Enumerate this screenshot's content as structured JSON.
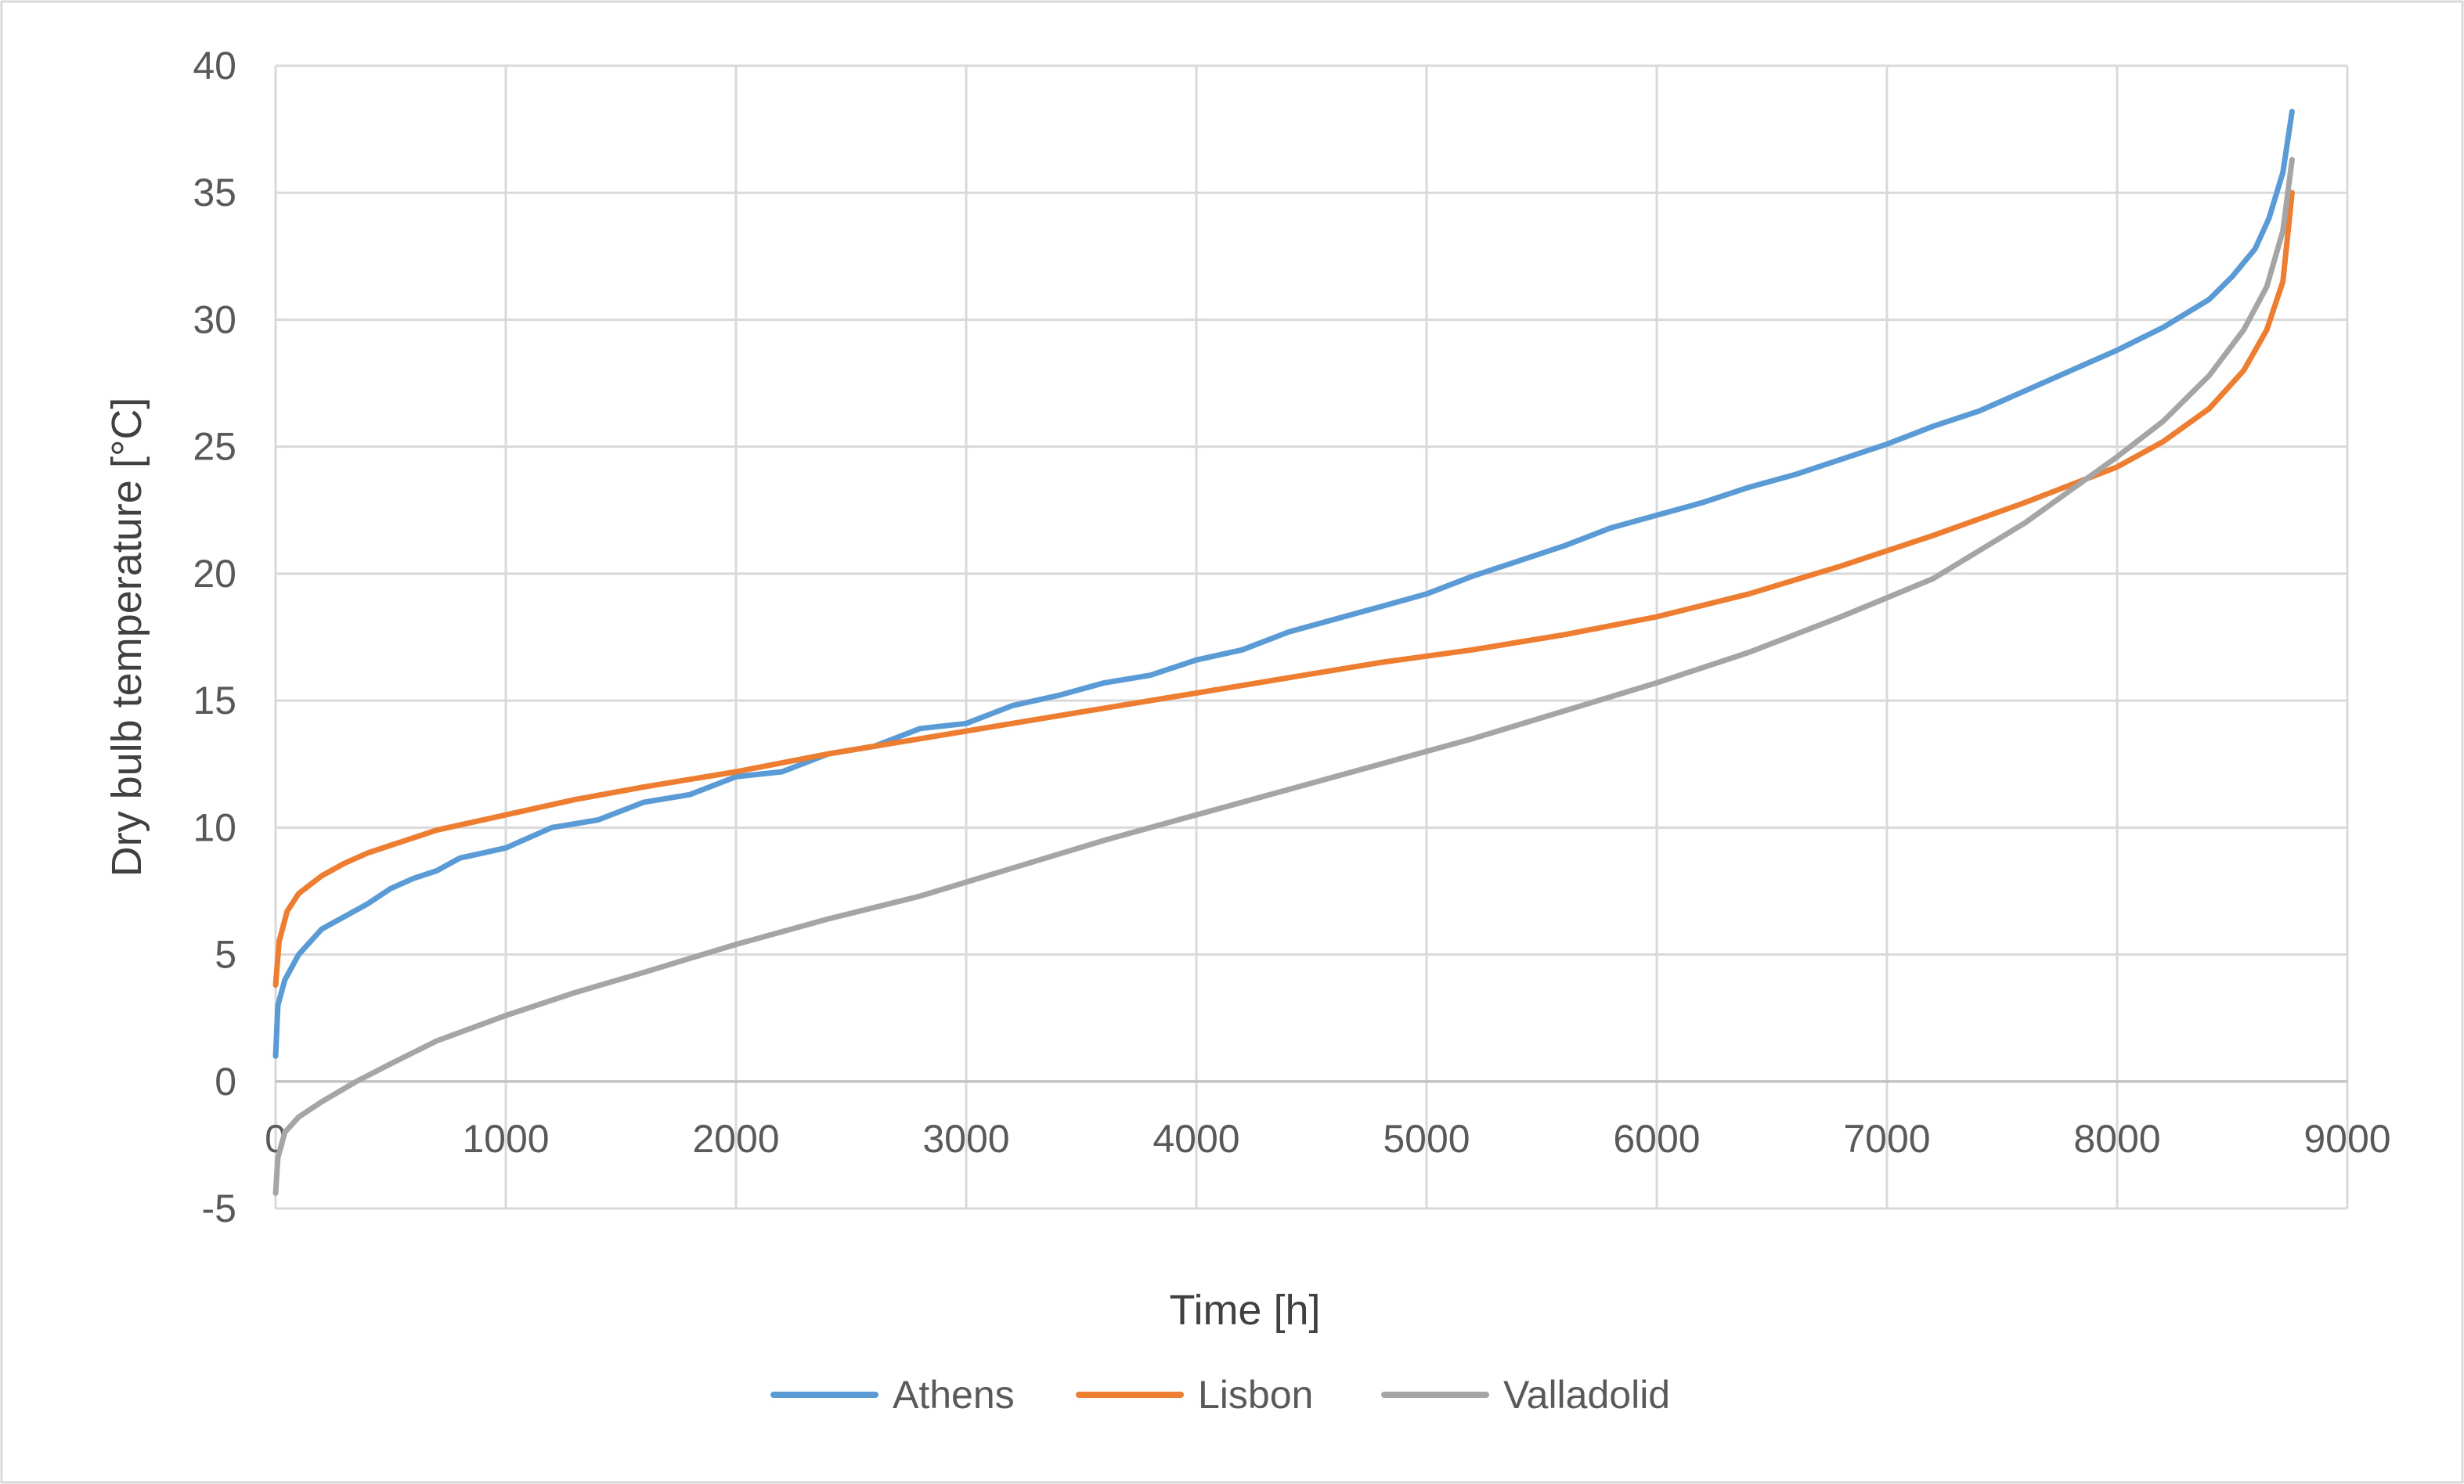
{
  "chart_data": {
    "type": "line",
    "title": "",
    "xlabel": "Time [h]",
    "ylabel": "Dry bulb temperature [°C]",
    "xlim": [
      0,
      9000
    ],
    "ylim": [
      -5,
      40
    ],
    "x_ticks": [
      "0",
      "1000",
      "2000",
      "3000",
      "4000",
      "5000",
      "6000",
      "7000",
      "8000",
      "9000"
    ],
    "y_ticks": [
      "-5",
      "0",
      "5",
      "10",
      "15",
      "20",
      "25",
      "30",
      "35",
      "40"
    ],
    "grid": true,
    "legend_position": "bottom",
    "series": [
      {
        "name": "Athens",
        "color": "#5b9bd5",
        "x": [
          0,
          10,
          40,
          100,
          200,
          300,
          400,
          500,
          600,
          700,
          800,
          900,
          1000,
          1200,
          1400,
          1600,
          1800,
          2000,
          2200,
          2400,
          2600,
          2800,
          3000,
          3200,
          3400,
          3600,
          3800,
          4000,
          4200,
          4400,
          4600,
          4800,
          5000,
          5200,
          5400,
          5600,
          5800,
          6000,
          6200,
          6400,
          6600,
          6800,
          7000,
          7200,
          7400,
          7600,
          7800,
          8000,
          8200,
          8400,
          8500,
          8600,
          8660,
          8720,
          8760
        ],
        "y": [
          1,
          3,
          4,
          5,
          6,
          6.5,
          7,
          7.6,
          8,
          8.3,
          8.8,
          9,
          9.2,
          10,
          10.3,
          11,
          11.3,
          12,
          12.2,
          12.9,
          13.2,
          13.9,
          14.1,
          14.8,
          15.2,
          15.7,
          16,
          16.6,
          17,
          17.7,
          18.2,
          18.7,
          19.2,
          19.9,
          20.5,
          21.1,
          21.8,
          22.3,
          22.8,
          23.4,
          23.9,
          24.5,
          25.1,
          25.8,
          26.4,
          27.2,
          28,
          28.8,
          29.7,
          30.8,
          31.7,
          32.8,
          34,
          35.8,
          38.2
        ]
      },
      {
        "name": "Lisbon",
        "color": "#ed7d31",
        "x": [
          0,
          15,
          50,
          100,
          200,
          300,
          400,
          500,
          700,
          1000,
          1300,
          1600,
          2000,
          2400,
          2800,
          3200,
          3600,
          4000,
          4400,
          4800,
          5200,
          5600,
          6000,
          6400,
          6800,
          7200,
          7600,
          8000,
          8200,
          8400,
          8550,
          8650,
          8720,
          8760
        ],
        "y": [
          3.8,
          5.5,
          6.7,
          7.4,
          8.1,
          8.6,
          9,
          9.3,
          9.9,
          10.5,
          11.1,
          11.6,
          12.2,
          12.9,
          13.5,
          14.1,
          14.7,
          15.3,
          15.9,
          16.5,
          17,
          17.6,
          18.3,
          19.2,
          20.3,
          21.5,
          22.8,
          24.2,
          25.2,
          26.5,
          28,
          29.6,
          31.5,
          35
        ]
      },
      {
        "name": "Valladolid",
        "color": "#a5a5a5",
        "x": [
          0,
          10,
          40,
          100,
          200,
          350,
          500,
          700,
          1000,
          1300,
          1600,
          2000,
          2400,
          2800,
          3200,
          3600,
          4000,
          4400,
          4800,
          5200,
          5600,
          6000,
          6400,
          6800,
          7200,
          7600,
          8000,
          8200,
          8400,
          8550,
          8650,
          8720,
          8760
        ],
        "y": [
          -4.4,
          -3,
          -2,
          -1.4,
          -0.8,
          0,
          0.7,
          1.6,
          2.6,
          3.5,
          4.3,
          5.4,
          6.4,
          7.3,
          8.4,
          9.5,
          10.5,
          11.5,
          12.5,
          13.5,
          14.6,
          15.7,
          16.9,
          18.3,
          19.8,
          22,
          24.6,
          26,
          27.8,
          29.6,
          31.3,
          33.5,
          36.3
        ]
      }
    ]
  }
}
